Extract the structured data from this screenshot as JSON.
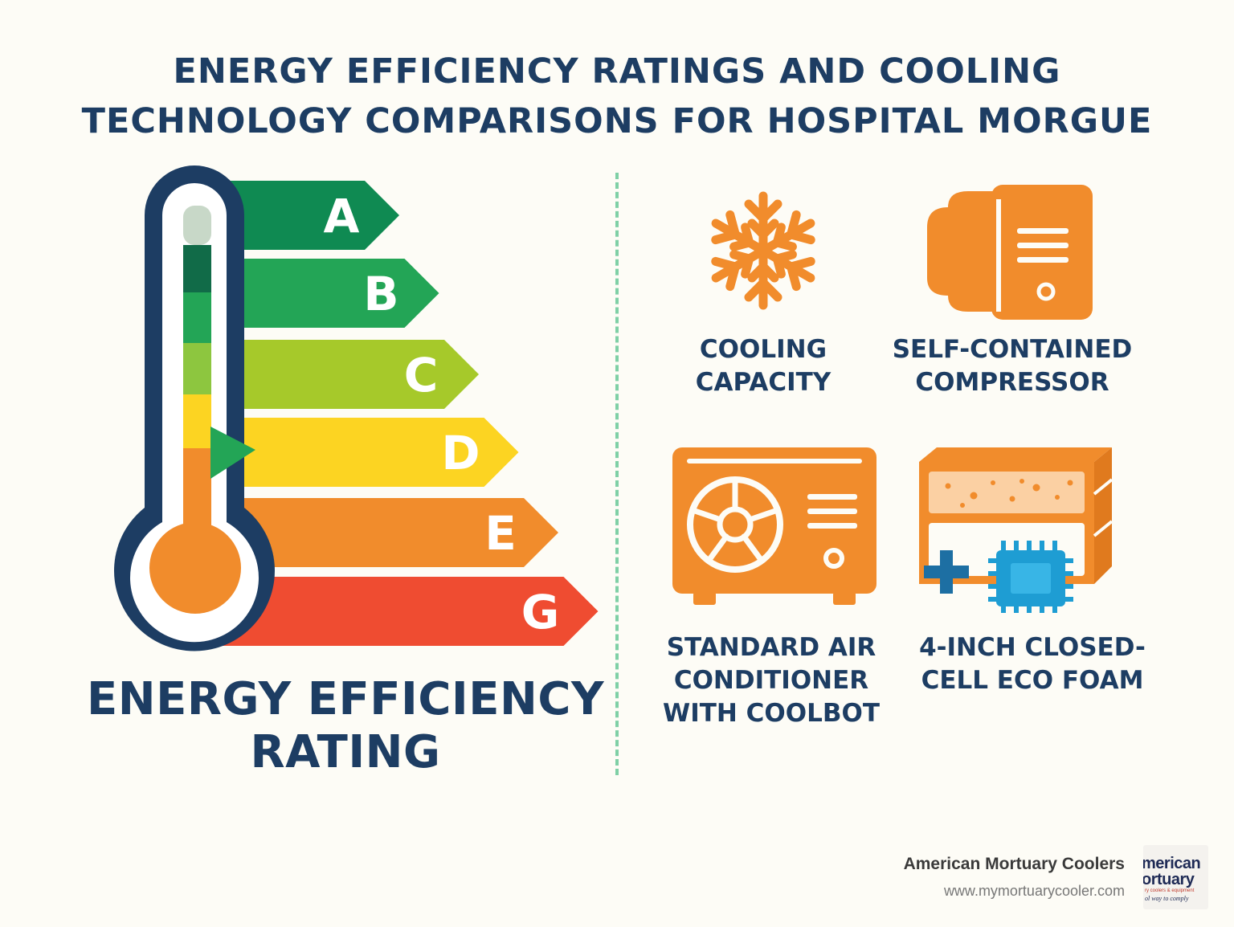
{
  "title": {
    "line1": "Energy Efficiency Ratings and Cooling",
    "line2": "Technology Comparisons for Hospital Morgue"
  },
  "rating": {
    "caption_line1": "ENERGY EFFICIENCY",
    "caption_line2": "RATING",
    "grades": [
      {
        "label": "A",
        "color": "#0f8a52"
      },
      {
        "label": "B",
        "color": "#23a556"
      },
      {
        "label": "C",
        "color": "#a6c92a"
      },
      {
        "label": "D",
        "color": "#fcd422"
      },
      {
        "label": "E",
        "color": "#f18c2c"
      },
      {
        "label": "G",
        "color": "#ef4c31"
      }
    ],
    "indicator_grade": "D"
  },
  "technologies": [
    {
      "line1": "COOLING",
      "line2": "CAPACITY",
      "line3": "",
      "icon": "snowflake-icon"
    },
    {
      "line1": "SELF-CONTAINED",
      "line2": "COMPRESSOR",
      "line3": "",
      "icon": "compressor-icon"
    },
    {
      "line1": "STANDARD AIR",
      "line2": "CONDITIONER",
      "line3": "WITH COOLBOT",
      "icon": "air-conditioner-icon"
    },
    {
      "line1": "4-INCH CLOSED-",
      "line2": "CELL ECO FOAM",
      "line3": "",
      "icon": "foam-panel-icon"
    }
  ],
  "colors": {
    "navy": "#1d3d63",
    "orange": "#f18c2c",
    "divider": "#7fd0a6",
    "chip": "#1e9dd3"
  },
  "footer": {
    "company": "American Mortuary Coolers",
    "url": "www.mymortuarycooler.com",
    "logo_line1": "merican",
    "logo_line2": "ortuary",
    "logo_line3": "ry coolers & equipment",
    "logo_line4": "ol way to comply"
  }
}
